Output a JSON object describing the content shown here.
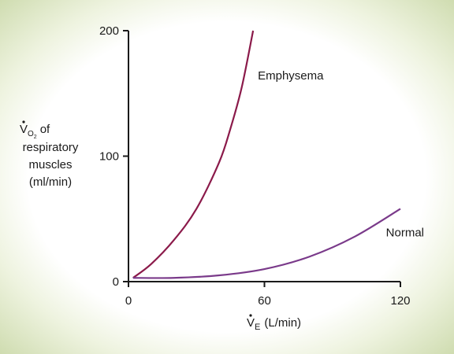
{
  "chart_data": {
    "type": "line",
    "xlabel": {
      "symbol": "V",
      "sub": "E",
      "unit": "(L/min)"
    },
    "ylabel": {
      "symbol": "V",
      "sub": "O",
      "subsub": "2",
      "line1_rest": "of",
      "line2": "respiratory",
      "line3": "muscles",
      "line4": "(ml/min)"
    },
    "xlim": [
      0,
      120
    ],
    "ylim": [
      0,
      200
    ],
    "xticks": [
      0,
      60,
      120
    ],
    "yticks": [
      0,
      100,
      200
    ],
    "grid": false,
    "series": [
      {
        "name": "Emphysema",
        "color": "#8b1a4a",
        "x": [
          2,
          10,
          20,
          30,
          40,
          45,
          50,
          55
        ],
        "y": [
          3,
          14,
          33,
          58,
          95,
          122,
          155,
          200
        ]
      },
      {
        "name": "Normal",
        "color": "#7a3a8a",
        "x": [
          2,
          20,
          40,
          60,
          80,
          100,
          120
        ],
        "y": [
          3,
          3,
          5,
          10,
          20,
          36,
          58
        ]
      }
    ]
  }
}
